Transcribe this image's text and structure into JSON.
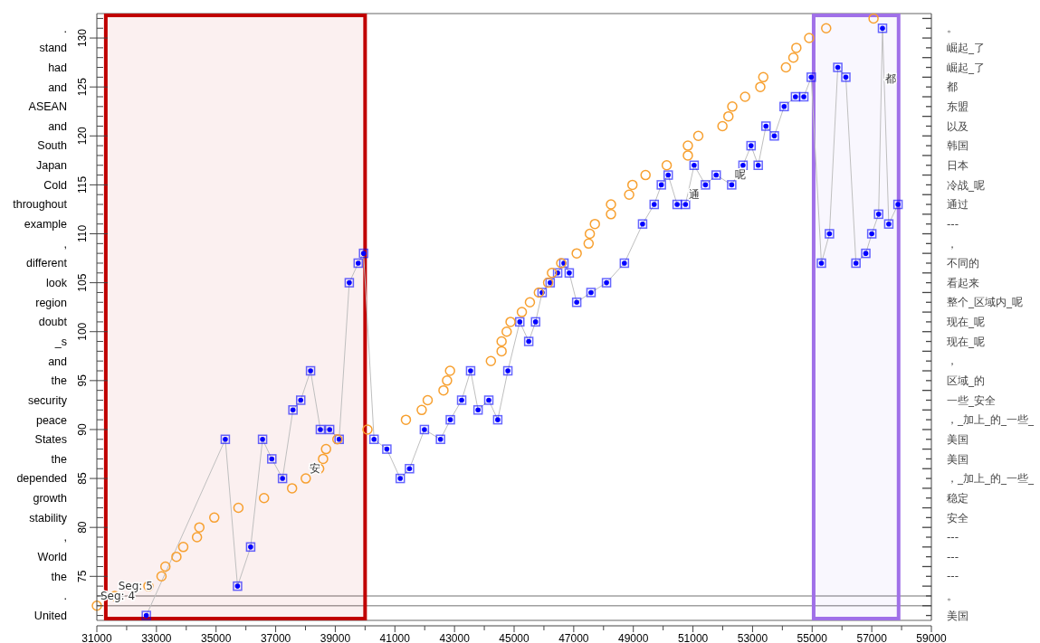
{
  "chart_data": {
    "type": "scatter",
    "xlim": [
      31000,
      59000
    ],
    "xticks": [
      31000,
      {
        "value": 32000,
        "label": null
      },
      33000,
      {
        "value": 34000,
        "label": null
      },
      35000,
      {
        "value": 36000,
        "label": null
      },
      37000,
      {
        "value": 38000,
        "label": null
      },
      39000,
      {
        "value": 40000,
        "label": null
      },
      41000,
      {
        "value": 42000,
        "label": null
      },
      43000,
      {
        "value": 44000,
        "label": null
      },
      45000,
      {
        "value": 46000,
        "label": null
      },
      47000,
      {
        "value": 48000,
        "label": null
      },
      49000,
      {
        "value": 50000,
        "label": null
      },
      51000,
      {
        "value": 52000,
        "label": null
      },
      53000,
      {
        "value": 54000,
        "label": null
      },
      55000,
      {
        "value": 56000,
        "label": null
      },
      57000,
      {
        "value": 58000,
        "label": null
      },
      59000
    ],
    "ylim": [
      70.5,
      132.5
    ],
    "yticks": [
      {
        "value": 71,
        "label": null
      },
      {
        "value": 72,
        "label": null
      },
      {
        "value": 73,
        "label": null
      },
      {
        "value": 74,
        "label": null
      },
      75,
      {
        "value": 76,
        "label": null
      },
      {
        "value": 77,
        "label": null
      },
      {
        "value": 78,
        "label": null
      },
      {
        "value": 79,
        "label": null
      },
      80,
      {
        "value": 81,
        "label": null
      },
      {
        "value": 82,
        "label": null
      },
      {
        "value": 83,
        "label": null
      },
      {
        "value": 84,
        "label": null
      },
      85,
      {
        "value": 86,
        "label": null
      },
      {
        "value": 87,
        "label": null
      },
      {
        "value": 88,
        "label": null
      },
      {
        "value": 89,
        "label": null
      },
      90,
      {
        "value": 91,
        "label": null
      },
      {
        "value": 92,
        "label": null
      },
      {
        "value": 93,
        "label": null
      },
      {
        "value": 94,
        "label": null
      },
      95,
      {
        "value": 96,
        "label": null
      },
      {
        "value": 97,
        "label": null
      },
      {
        "value": 98,
        "label": null
      },
      {
        "value": 99,
        "label": null
      },
      100,
      {
        "value": 101,
        "label": null
      },
      {
        "value": 102,
        "label": null
      },
      {
        "value": 103,
        "label": null
      },
      {
        "value": 104,
        "label": null
      },
      105,
      {
        "value": 106,
        "label": null
      },
      {
        "value": 107,
        "label": null
      },
      {
        "value": 108,
        "label": null
      },
      {
        "value": 109,
        "label": null
      },
      110,
      {
        "value": 111,
        "label": null
      },
      {
        "value": 112,
        "label": null
      },
      {
        "value": 113,
        "label": null
      },
      {
        "value": 114,
        "label": null
      },
      115,
      {
        "value": 116,
        "label": null
      },
      {
        "value": 117,
        "label": null
      },
      {
        "value": 118,
        "label": null
      },
      {
        "value": 119,
        "label": null
      },
      120,
      {
        "value": 121,
        "label": null
      },
      {
        "value": 122,
        "label": null
      },
      {
        "value": 123,
        "label": null
      },
      {
        "value": 124,
        "label": null
      },
      125,
      {
        "value": 126,
        "label": null
      },
      {
        "value": 127,
        "label": null
      },
      {
        "value": 128,
        "label": null
      },
      {
        "value": 129,
        "label": null
      },
      130,
      {
        "value": 131,
        "label": null
      },
      {
        "value": 132,
        "label": null
      }
    ],
    "y_categories": [
      null,
      ".",
      null,
      "stand",
      null,
      "had",
      null,
      "and",
      null,
      "ASEAN",
      null,
      "and",
      null,
      "South",
      null,
      "Japan",
      null,
      "Cold",
      null,
      "throughout",
      null,
      "example",
      null,
      ",",
      null,
      "different",
      null,
      "look",
      null,
      "region",
      null,
      "doubt",
      null,
      "_s",
      null,
      "and",
      null,
      "the",
      null,
      "security",
      null,
      "peace",
      null,
      "States",
      null,
      "the",
      null,
      "depended",
      null,
      "growth",
      null,
      "stability",
      null,
      ",",
      null,
      "World",
      null,
      "the",
      null,
      ".",
      null,
      "United"
    ],
    "y2_categories": [
      null,
      "。",
      null,
      "崛起_了",
      null,
      "崛起_了",
      null,
      "都",
      null,
      "东盟",
      null,
      "以及",
      null,
      "韩国",
      null,
      "日本",
      null,
      "冷战_呢",
      null,
      "通过",
      null,
      "---",
      null,
      "，",
      null,
      "不同的",
      null,
      "看起来",
      null,
      "整个_区域内_呢",
      null,
      "现在_呢",
      null,
      "现在_呢",
      null,
      "，",
      null,
      "区域_的",
      null,
      "一些_安全",
      null,
      "，_加上_的_一些_",
      null,
      "美国",
      null,
      "美国",
      null,
      "，_加上_的_一些_",
      null,
      "稳定",
      null,
      "安全",
      null,
      "---",
      null,
      "---",
      null,
      "---",
      null,
      "。",
      null,
      "美国"
    ],
    "ref_lines": [
      {
        "axis": "y",
        "value": 73,
        "color": "#a0a0a0"
      },
      {
        "axis": "y",
        "value": 72,
        "color": "#a0a0a0"
      }
    ],
    "bands": [
      {
        "axis": "x",
        "from": 31300,
        "to": 40000,
        "color": "#c00000"
      },
      {
        "axis": "x",
        "from": 55050,
        "to": 57900,
        "color": "#a070e8"
      }
    ],
    "annotations": [
      {
        "text": "Seg: 5",
        "x": 31600,
        "y": 73
      },
      {
        "text": "Seg: 4",
        "x": 31000,
        "y": 72
      },
      {
        "text": "安",
        "x": 38010,
        "y": 85
      },
      {
        "text": "通",
        "x": 50750,
        "y": 113
      },
      {
        "text": "呢",
        "x": 52300,
        "y": 115
      },
      {
        "text": "都",
        "x": 57318,
        "y": 124.8
      }
    ],
    "grid": false,
    "series": [
      {
        "marker": "circle",
        "color": "#f7a030",
        "x": [
          31000,
          31600,
          32730,
          33170,
          33300,
          33670,
          33900,
          34360,
          34440,
          34940,
          35750,
          36610,
          37550,
          38010,
          38460,
          38590,
          38690,
          39070,
          40080,
          41370,
          41900,
          42100,
          42630,
          42750,
          42850,
          44220,
          44580,
          44580,
          44750,
          44880,
          45260,
          45530,
          45830,
          46140,
          46270,
          46580,
          47100,
          47500,
          47540,
          47710,
          48250,
          48250,
          48860,
          48970,
          49410,
          50120,
          50830,
          50830,
          51180,
          51990,
          52190,
          52320,
          52750,
          53260,
          53360,
          54120,
          54370,
          54470,
          54900,
          55470,
          57060
        ],
        "values": [
          72,
          73,
          74,
          75,
          76,
          77,
          78,
          79,
          80,
          81,
          82,
          83,
          84,
          85,
          86,
          87,
          88,
          89,
          90,
          91,
          92,
          93,
          94,
          95,
          96,
          97,
          98,
          99,
          100,
          101,
          102,
          103,
          104,
          105,
          106,
          107,
          108,
          109,
          110,
          111,
          112,
          113,
          114,
          115,
          116,
          117,
          118,
          119,
          120,
          121,
          122,
          123,
          124,
          125,
          126,
          127,
          128,
          129,
          130,
          131,
          132
        ]
      },
      {
        "type": "line",
        "marker": "square",
        "color": "#0000ff",
        "x": [
          32660,
          35310,
          35720,
          36160,
          36560,
          36870,
          37230,
          37580,
          37840,
          38170,
          38500,
          38810,
          39130,
          39470,
          39770,
          39950,
          40300,
          40730,
          41180,
          41490,
          41990,
          42530,
          42860,
          43240,
          43540,
          43790,
          44150,
          44450,
          44790,
          45190,
          45490,
          45720,
          45940,
          46210,
          46460,
          46670,
          46850,
          47100,
          47580,
          48100,
          48700,
          49310,
          49700,
          49940,
          50170,
          50470,
          50750,
          51040,
          51420,
          51780,
          52300,
          52680,
          52950,
          53190,
          53450,
          53730,
          54060,
          54440,
          54720,
          54970,
          55310,
          55580,
          55860,
          56130,
          56470,
          56800,
          57000,
          57230,
          57360,
          57570,
          57880
        ],
        "values": [
          71,
          89,
          74,
          78,
          89,
          87,
          85,
          92,
          93,
          96,
          90,
          90,
          89,
          105,
          107,
          108,
          89,
          88,
          85,
          86,
          90,
          89,
          91,
          93,
          96,
          92,
          93,
          91,
          96,
          101,
          99,
          101,
          104,
          105,
          106,
          107,
          106,
          103,
          104,
          105,
          107,
          111,
          113,
          115,
          116,
          113,
          113,
          117,
          115,
          116,
          115,
          117,
          119,
          117,
          121,
          120,
          123,
          124,
          124,
          126,
          107,
          110,
          127,
          126,
          107,
          108,
          110,
          112,
          131,
          111,
          113
        ]
      }
    ]
  }
}
